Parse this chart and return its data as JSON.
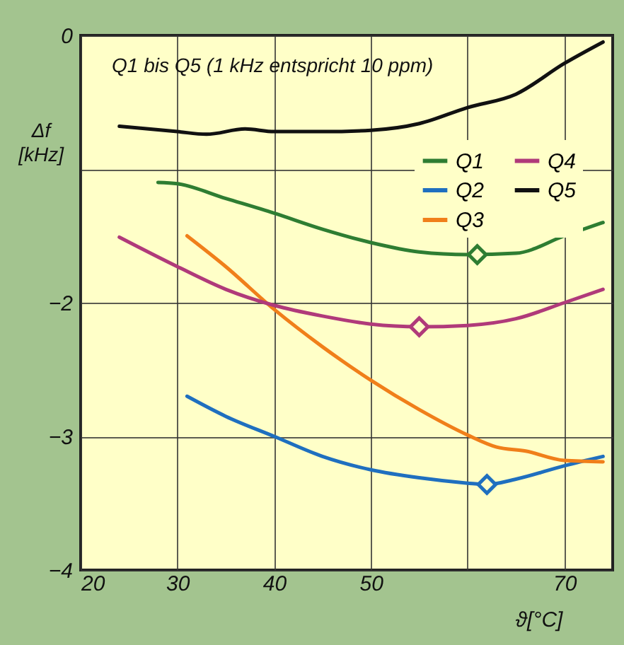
{
  "chart_data": {
    "type": "line",
    "xlabel": "ϑ[°C]",
    "ylabel": "Δf [kHz]",
    "annotations": [
      "Q1 bis Q5 (1 kHz entspricht 10 ppm)"
    ],
    "xlim": [
      20,
      75
    ],
    "ylim": [
      -4,
      0
    ],
    "xticks": [
      20,
      30,
      40,
      50,
      {
        "value": 60,
        "label": null
      },
      70
    ],
    "yticks": [
      -4,
      -3,
      -2,
      {
        "value": -1,
        "label": null
      },
      0
    ],
    "grid": true,
    "legend": "top right",
    "line_style": "solid",
    "marker": "none",
    "series": [
      {
        "name": "Q1",
        "color": "#2e7d32",
        "x": [
          28,
          30,
          35,
          40,
          45,
          50,
          55,
          60,
          65,
          70,
          74
        ],
        "values": [
          -1.1,
          -1.11,
          -1.22,
          -1.33,
          -1.45,
          -1.55,
          -1.62,
          -1.64,
          -1.63,
          -1.5,
          -1.4
        ]
      },
      {
        "name": "Q2",
        "color": "#1f6fbf",
        "x": [
          31,
          35,
          40,
          45,
          50,
          55,
          60,
          62,
          65,
          70,
          74
        ],
        "values": [
          -2.7,
          -2.85,
          -3.0,
          -3.15,
          -3.25,
          -3.31,
          -3.35,
          -3.36,
          -3.32,
          -3.22,
          -3.15
        ]
      },
      {
        "name": "Q3",
        "color": "#f07f1a",
        "x": [
          31,
          35,
          40,
          45,
          50,
          55,
          60,
          63,
          66,
          70,
          74
        ],
        "values": [
          -1.5,
          -1.73,
          -2.05,
          -2.33,
          -2.58,
          -2.8,
          -2.99,
          -3.08,
          -3.11,
          -3.18,
          -3.19
        ]
      },
      {
        "name": "Q4",
        "color": "#b03a7a",
        "x": [
          24,
          30,
          35,
          40,
          45,
          50,
          55,
          60,
          65,
          70,
          74
        ],
        "values": [
          -1.51,
          -1.73,
          -1.9,
          -2.02,
          -2.1,
          -2.16,
          -2.18,
          -2.17,
          -2.12,
          -2.0,
          -1.9
        ]
      },
      {
        "name": "Q5",
        "color": "#111111",
        "x": [
          24,
          30,
          33,
          37,
          40,
          45,
          50,
          55,
          60,
          65,
          70,
          74
        ],
        "values": [
          -0.68,
          -0.72,
          -0.74,
          -0.7,
          -0.72,
          -0.72,
          -0.71,
          -0.66,
          -0.54,
          -0.44,
          -0.21,
          -0.05
        ]
      },
      {
        "type": "scatter",
        "marker": "diamond",
        "color": "#2e7d32",
        "x": [
          61
        ],
        "values": [
          -1.64
        ]
      },
      {
        "type": "scatter",
        "marker": "diamond",
        "color": "#b03a7a",
        "x": [
          55
        ],
        "values": [
          -2.18
        ]
      },
      {
        "type": "scatter",
        "marker": "diamond",
        "color": "#1f6fbf",
        "x": [
          62
        ],
        "values": [
          -3.36
        ]
      }
    ]
  }
}
